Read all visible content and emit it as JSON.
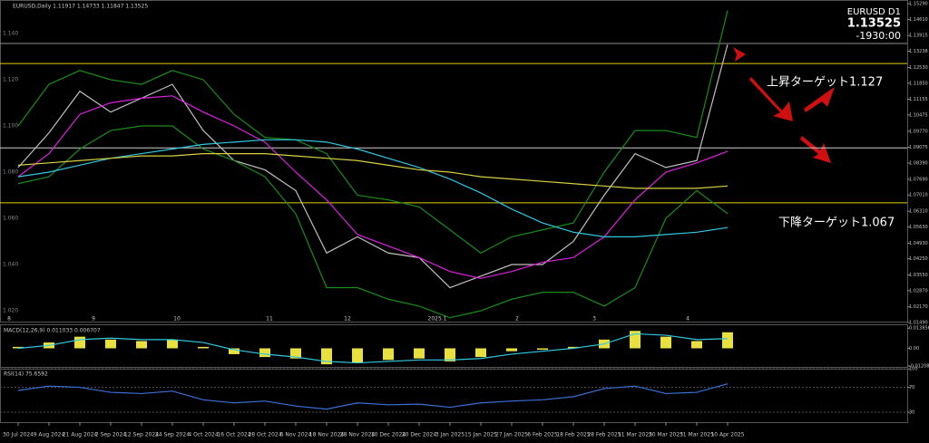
{
  "chart_data": [
    {
      "type": "line",
      "title": "EURUSD,Daily  1.11917 1.14733 1.11847 1.13525",
      "symbol_label": "EURUSD   D1",
      "last_price_label": "1.13525",
      "countdown": "-1930:00",
      "annotations": [
        "上昇ターゲット1.127",
        "下降ターゲット1.067"
      ],
      "period_labels": [
        "8",
        "9",
        "10",
        "11",
        "12",
        "2025.1",
        "2",
        "3",
        "4"
      ],
      "categories": [
        "30 Jul 2024",
        "9 Aug 2024",
        "21 Aug 2024",
        "2 Sep 2024",
        "12 Sep 2024",
        "24 Sep 2024",
        "4 Oct 2024",
        "16 Oct 2024",
        "28 Oct 2024",
        "6 Nov 2024",
        "18 Nov 2024",
        "28 Nov 2024",
        "10 Dec 2024",
        "20 Dec 2024",
        "3 Jan 2025",
        "15 Jan 2025",
        "27 Jan 2025",
        "6 Feb 2025",
        "18 Feb 2025",
        "28 Feb 2025",
        "11 Mar 2025",
        "20 Mar 2025",
        "31 Mar 2025",
        "10 Apr 2025"
      ],
      "series": [
        {
          "color": "#c0c0c0",
          "values": [
            1.082,
            1.097,
            1.115,
            1.106,
            1.112,
            1.118,
            1.098,
            1.085,
            1.081,
            1.072,
            1.045,
            1.052,
            1.045,
            1.043,
            1.03,
            1.035,
            1.04,
            1.04,
            1.05,
            1.07,
            1.088,
            1.082,
            1.085,
            1.13525
          ]
        },
        {
          "color": "#1a8c1a",
          "values": [
            1.1,
            1.118,
            1.124,
            1.12,
            1.118,
            1.124,
            1.12,
            1.105,
            1.095,
            1.094,
            1.088,
            1.07,
            1.068,
            1.065,
            1.055,
            1.045,
            1.052,
            1.055,
            1.058,
            1.08,
            1.098,
            1.098,
            1.095,
            1.15
          ]
        },
        {
          "color": "#1a8c1a",
          "values": [
            1.075,
            1.078,
            1.09,
            1.098,
            1.1,
            1.1,
            1.09,
            1.085,
            1.078,
            1.062,
            1.03,
            1.03,
            1.025,
            1.022,
            1.017,
            1.02,
            1.025,
            1.028,
            1.028,
            1.022,
            1.03,
            1.06,
            1.072,
            1.062
          ]
        },
        {
          "color": "#e020e0",
          "values": [
            1.078,
            1.088,
            1.105,
            1.11,
            1.112,
            1.113,
            1.106,
            1.1,
            1.093,
            1.08,
            1.068,
            1.053,
            1.048,
            1.043,
            1.037,
            1.034,
            1.037,
            1.041,
            1.043,
            1.052,
            1.068,
            1.08,
            1.084,
            1.089
          ]
        },
        {
          "color": "#30c8e0",
          "values": [
            1.078,
            1.08,
            1.083,
            1.086,
            1.088,
            1.09,
            1.092,
            1.093,
            1.094,
            1.094,
            1.093,
            1.09,
            1.086,
            1.082,
            1.077,
            1.071,
            1.064,
            1.058,
            1.054,
            1.052,
            1.052,
            1.053,
            1.054,
            1.056
          ]
        },
        {
          "color": "#d8d040",
          "values": [
            1.083,
            1.084,
            1.085,
            1.086,
            1.087,
            1.087,
            1.088,
            1.088,
            1.088,
            1.087,
            1.086,
            1.085,
            1.083,
            1.081,
            1.08,
            1.078,
            1.077,
            1.076,
            1.075,
            1.074,
            1.073,
            1.073,
            1.073,
            1.074
          ]
        }
      ],
      "levels": [
        {
          "value": 1.127,
          "color": "#e0d000"
        },
        {
          "value": 1.0667,
          "color": "#e0d000"
        },
        {
          "value": 1.0905,
          "color": "#d0d0d0"
        },
        {
          "value": 1.1357,
          "color": "#909090"
        }
      ],
      "ylim": [
        1.0153,
        1.1545
      ],
      "yticks": [
        {
          "value": 1.1529,
          "label": "1.15290"
        },
        {
          "value": 1.1461,
          "label": "1.14610"
        },
        1.13915,
        1.13238,
        {
          "value": 1.1253,
          "label": "1.12530"
        },
        {
          "value": 1.1185,
          "label": "1.11850"
        },
        1.11155,
        1.10475,
        {
          "value": 1.0977,
          "label": "1.09770"
        },
        1.09075,
        {
          "value": 1.0839,
          "label": "1.08390"
        },
        {
          "value": 1.0769,
          "label": "1.07690"
        },
        {
          "value": 1.0701,
          "label": "1.07010"
        },
        {
          "value": 1.0631,
          "label": "1.06310"
        },
        {
          "value": 1.0563,
          "label": "1.05630"
        },
        {
          "value": 1.0493,
          "label": "1.04930"
        },
        {
          "value": 1.0425,
          "label": "1.04250"
        },
        {
          "value": 1.0355,
          "label": "1.03550"
        },
        {
          "value": 1.0287,
          "label": "1.02870"
        },
        {
          "value": 1.0217,
          "label": "1.02170"
        },
        {
          "value": 1.0149,
          "label": "1.01490"
        }
      ],
      "inner_ticks": [
        {
          "value": 1.14,
          "label": "1.140"
        },
        {
          "value": 1.12,
          "label": "1.120"
        },
        {
          "value": 1.1,
          "label": "1.100"
        },
        {
          "value": 1.08,
          "label": "1.080"
        },
        {
          "value": 1.06,
          "label": "1.060"
        },
        {
          "value": 1.04,
          "label": "1.040"
        },
        {
          "value": 1.02,
          "label": "1.020"
        }
      ]
    },
    {
      "type": "macd",
      "title": "MACD(12,26,9) 0.011033 0.006707",
      "series": [
        {
          "type": "bar",
          "color": "#e8e040",
          "values": [
            0.001,
            0.004,
            0.008,
            0.006,
            0.005,
            0.006,
            0.001,
            -0.004,
            -0.006,
            -0.007,
            -0.011,
            -0.01,
            -0.008,
            -0.007,
            -0.009,
            -0.006,
            -0.002,
            -0.001,
            0.001,
            0.006,
            0.012,
            0.008,
            0.005,
            0.011033
          ]
        },
        {
          "type": "line",
          "color": "#30c8e0",
          "values": [
            0.0,
            0.002,
            0.006,
            0.007,
            0.006,
            0.006,
            0.004,
            -0.001,
            -0.004,
            -0.006,
            -0.009,
            -0.01,
            -0.009,
            -0.008,
            -0.008,
            -0.007,
            -0.004,
            -0.002,
            0.0,
            0.003,
            0.01,
            0.009,
            0.006,
            0.006707
          ]
        }
      ],
      "ylim": [
        -0.0134,
        0.0165
      ],
      "yticks": [
        0.013856,
        {
          "value": 0,
          "label": "0.00"
        },
        -0.012083
      ]
    },
    {
      "type": "rsi",
      "title": "RSI(14) 75.6592",
      "series": [
        {
          "type": "line",
          "color": "#3a70d8",
          "values": [
            65,
            72,
            70,
            62,
            60,
            64,
            50,
            45,
            48,
            40,
            35,
            45,
            42,
            43,
            38,
            45,
            48,
            50,
            55,
            68,
            72,
            60,
            62,
            75.6592
          ]
        }
      ],
      "ylim": [
        14,
        100
      ],
      "yticks": [
        100,
        70,
        30
      ]
    }
  ]
}
